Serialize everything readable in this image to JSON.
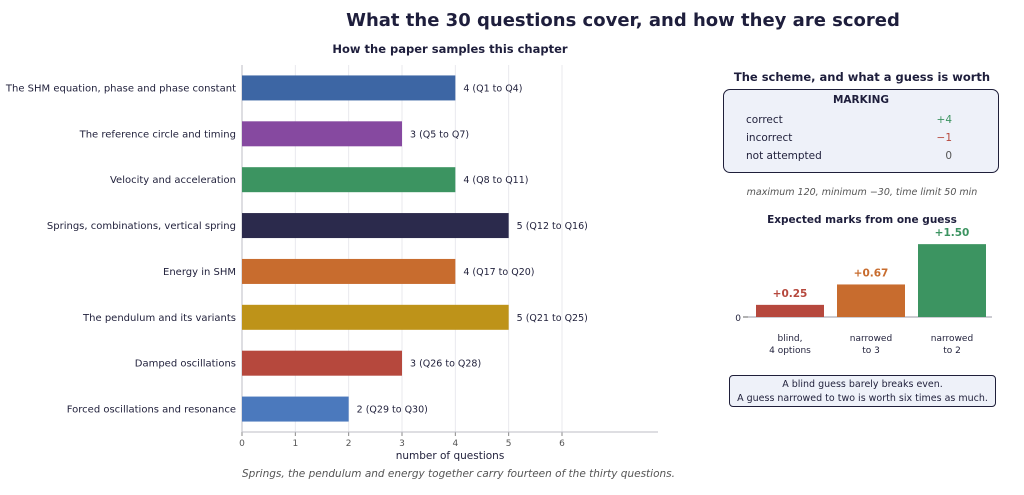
{
  "title": "What the 30 questions cover, and how they are scored",
  "chart_data": [
    {
      "type": "bar",
      "orientation": "horizontal",
      "title": "How the paper samples this chapter",
      "xlabel": "number of questions",
      "xlim": [
        0,
        7.8
      ],
      "xticks": [
        "0",
        "1",
        "2",
        "3",
        "4",
        "5",
        "6"
      ],
      "grid": true,
      "categories": [
        "The SHM equation, phase and phase constant",
        "The reference circle and timing",
        "Velocity and acceleration",
        "Springs, combinations, vertical spring",
        "Energy in SHM",
        "The pendulum and its variants",
        "Damped oscillations",
        "Forced oscillations and resonance"
      ],
      "values": [
        4,
        3,
        4,
        5,
        4,
        5,
        3,
        2
      ],
      "ranges": [
        "(Q1 to Q4)",
        "(Q5 to Q7)",
        "(Q8 to Q11)",
        "(Q12 to Q16)",
        "(Q17 to Q20)",
        "(Q21 to Q25)",
        "(Q26 to Q28)",
        "(Q29 to Q30)"
      ],
      "colors": [
        "#3d66a4",
        "#8649a0",
        "#3c9461",
        "#2b2a4c",
        "#c86c2e",
        "#be9319",
        "#b6483d",
        "#4b79bd"
      ]
    },
    {
      "type": "bar",
      "title": "Expected marks from one guess",
      "categories": [
        "blind,\n4 options",
        "narrowed\nto 3",
        "narrowed\nto 2"
      ],
      "values": [
        0.25,
        0.67,
        1.5
      ],
      "value_labels": [
        "+0.25",
        "+0.67",
        "+1.50"
      ],
      "yticks": [
        "0"
      ],
      "ylim": [
        0,
        1.75
      ],
      "colors": [
        "#b6483d",
        "#c86c2e",
        "#3c9461"
      ]
    }
  ],
  "footnote": "Springs, the pendulum and energy together carry fourteen of the thirty questions.",
  "scheme": {
    "title": "The scheme, and what a guess is worth",
    "box_heading": "MARKING",
    "rows": [
      {
        "label": "correct",
        "value": "+4",
        "color": "#3c9461"
      },
      {
        "label": "incorrect",
        "value": "−1",
        "color": "#b6483d"
      },
      {
        "label": "not attempted",
        "value": "0",
        "color": "#555555"
      }
    ],
    "note": "maximum 120,   minimum −30,   time limit 50 min"
  },
  "guess_note": {
    "line1": "A blind guess barely breaks even.",
    "line2": "A guess narrowed to two is worth six times as much."
  }
}
